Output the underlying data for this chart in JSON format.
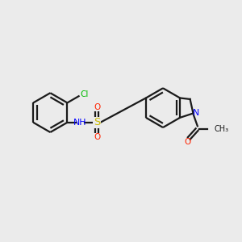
{
  "bg_color": "#ebebeb",
  "bond_color": "#1a1a1a",
  "atom_colors": {
    "N": "#0000ff",
    "O": "#ff2200",
    "S": "#ccbb00",
    "Cl": "#00bb00",
    "C": "#1a1a1a",
    "H": "#1a1a1a"
  },
  "lw": 1.6
}
